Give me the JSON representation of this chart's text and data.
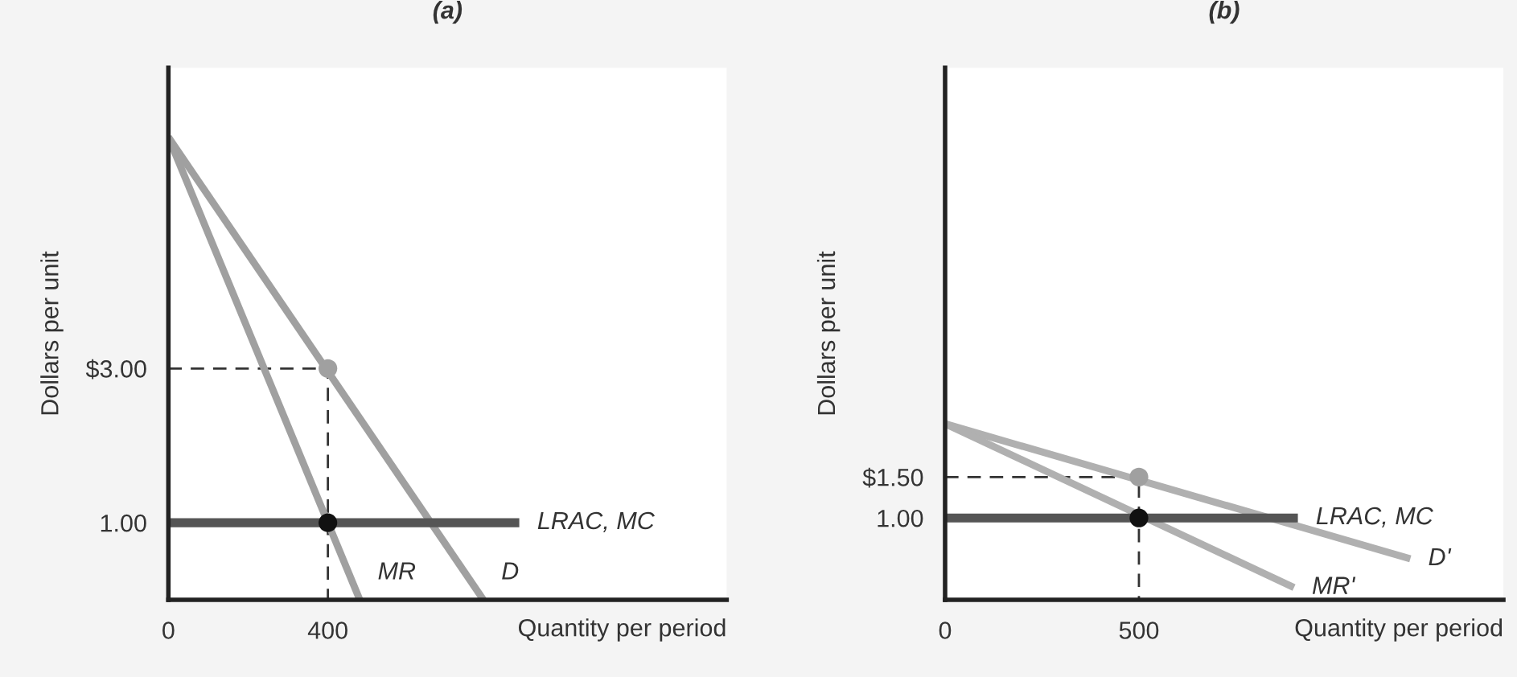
{
  "chart_data": [
    {
      "type": "line",
      "title": "(a)",
      "xlabel": "Quantity per period",
      "ylabel": "Dollars per unit",
      "xlim": [
        0,
        1400
      ],
      "ylim": [
        0,
        6.9
      ],
      "xticks": [
        0,
        400
      ],
      "yticks": [
        {
          "value": 3,
          "label": "$3.00"
        },
        {
          "value": 1,
          "label": "1.00"
        }
      ],
      "grid": false,
      "legend": false,
      "series": [
        {
          "line_style": "dashed",
          "color": "#333333",
          "x": [
            0,
            400,
            400
          ],
          "values": [
            3,
            3,
            0
          ]
        },
        {
          "name": "D",
          "color": "#a0a0a0",
          "x": [
            0,
            790
          ],
          "values": [
            6,
            0
          ]
        },
        {
          "name": "MR",
          "color": "#a0a0a0",
          "x": [
            0,
            480
          ],
          "values": [
            6,
            0
          ]
        },
        {
          "name": "LRAC, MC",
          "color": "#555555",
          "x": [
            0,
            880
          ],
          "values": [
            1,
            1
          ]
        },
        {
          "type": "scatter",
          "marker": "circle",
          "x": [
            400,
            400
          ],
          "values": [
            3,
            1
          ],
          "colors": [
            "#a0a0a0",
            "#111111"
          ]
        }
      ]
    },
    {
      "type": "line",
      "title": "(b)",
      "xlabel": "Quantity per period",
      "ylabel": "Dollars per unit",
      "xlim": [
        0,
        1440
      ],
      "ylim": [
        0,
        6.5
      ],
      "xticks": [
        0,
        500
      ],
      "yticks": [
        {
          "value": 1.5,
          "label": "$1.50"
        },
        {
          "value": 1,
          "label": "1.00"
        }
      ],
      "grid": false,
      "legend": false,
      "series": [
        {
          "line_style": "dashed",
          "color": "#333333",
          "x": [
            0,
            500,
            500
          ],
          "values": [
            1.5,
            1.5,
            0
          ]
        },
        {
          "name": "D'",
          "color": "#b0b0b0",
          "x": [
            0,
            1200
          ],
          "values": [
            2.15,
            0.5
          ]
        },
        {
          "name": "MR'",
          "color": "#b0b0b0",
          "x": [
            0,
            900
          ],
          "values": [
            2.15,
            0.15
          ]
        },
        {
          "name": "LRAC, MC",
          "color": "#555555",
          "x": [
            0,
            910
          ],
          "values": [
            1,
            1
          ]
        },
        {
          "type": "scatter",
          "marker": "circle",
          "x": [
            500,
            500
          ],
          "values": [
            1.5,
            1
          ],
          "colors": [
            "#a0a0a0",
            "#111111"
          ]
        }
      ]
    }
  ]
}
